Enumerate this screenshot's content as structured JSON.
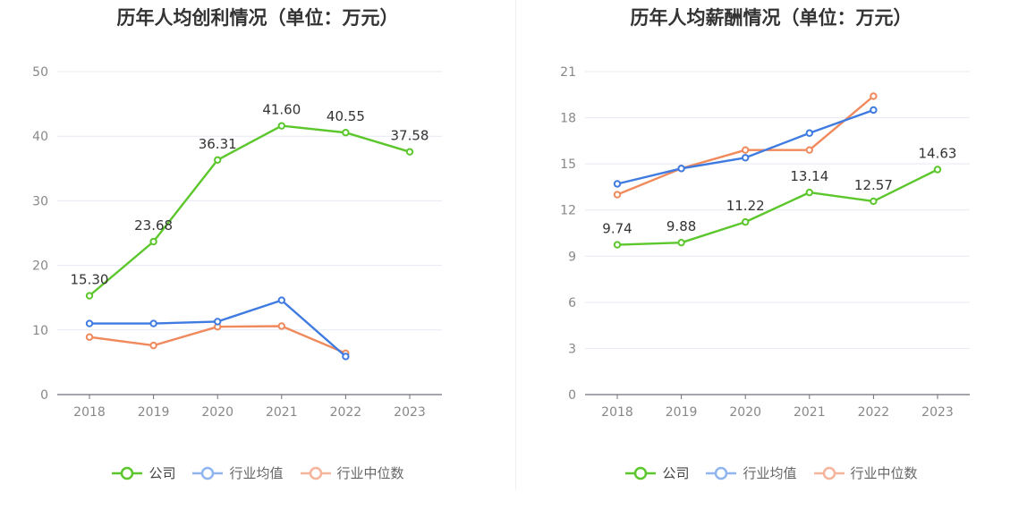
{
  "charts": [
    {
      "title": "历年人均创利情况（单位：万元）",
      "chart_data": {
        "type": "line",
        "categories": [
          "2018",
          "2019",
          "2020",
          "2021",
          "2022",
          "2023"
        ],
        "ylim": [
          0,
          50
        ],
        "yticks": [
          "0",
          "10",
          "20",
          "30",
          "40",
          "50"
        ],
        "series": [
          {
            "name": "公司",
            "color": "#5cc72c",
            "values": [
              15.3,
              23.68,
              36.31,
              41.6,
              40.55,
              37.58
            ],
            "labels": [
              "15.30",
              "23.68",
              "36.31",
              "41.60",
              "40.55",
              "37.58"
            ]
          },
          {
            "name": "行业均值",
            "color": "#3f7be0",
            "values": [
              11.0,
              11.0,
              11.3,
              14.6,
              5.9,
              null
            ]
          },
          {
            "name": "行业中位数",
            "color": "#f08a5d",
            "values": [
              8.9,
              7.6,
              10.5,
              10.6,
              6.4,
              null
            ]
          }
        ]
      },
      "legend": [
        "公司",
        "行业均值",
        "行业中位数"
      ]
    },
    {
      "title": "历年人均薪酬情况（单位：万元）",
      "chart_data": {
        "type": "line",
        "categories": [
          "2018",
          "2019",
          "2020",
          "2021",
          "2022",
          "2023"
        ],
        "ylim": [
          0,
          21
        ],
        "yticks": [
          "0",
          "3",
          "6",
          "9",
          "12",
          "15",
          "18",
          "21"
        ],
        "series": [
          {
            "name": "公司",
            "color": "#5cc72c",
            "values": [
              9.74,
              9.88,
              11.22,
              13.14,
              12.57,
              14.63
            ],
            "labels": [
              "9.74",
              "9.88",
              "11.22",
              "13.14",
              "12.57",
              "14.63"
            ]
          },
          {
            "name": "行业均值",
            "color": "#3f7be0",
            "values": [
              13.7,
              14.7,
              15.4,
              17.0,
              18.5,
              null
            ]
          },
          {
            "name": "行业中位数",
            "color": "#f08a5d",
            "values": [
              13.0,
              14.7,
              15.9,
              15.9,
              19.4,
              null
            ]
          }
        ]
      },
      "legend": [
        "公司",
        "行业均值",
        "行业中位数"
      ]
    }
  ],
  "legend_colors": {
    "company": "#5cc72c",
    "avg_muted": "#8fb4ee",
    "median_muted": "#f6b49a"
  }
}
